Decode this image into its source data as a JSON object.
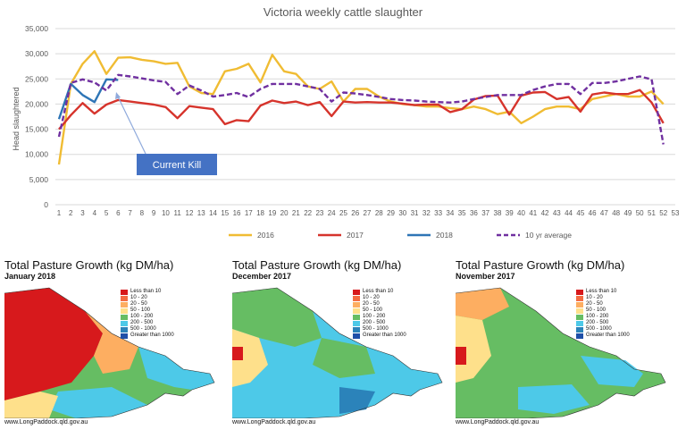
{
  "chart_data": {
    "type": "line",
    "title": "Victoria weekly cattle slaughter",
    "ylabel": "Head slaughtered",
    "xlabel": "",
    "ylim": [
      0,
      35000
    ],
    "yticks": [
      0,
      5000,
      10000,
      15000,
      20000,
      25000,
      30000,
      35000
    ],
    "ytick_labels": [
      "0",
      "5,000",
      "10,000",
      "15,000",
      "20,000",
      "25,000",
      "30,000",
      "35,000"
    ],
    "x": [
      1,
      2,
      3,
      4,
      5,
      6,
      7,
      8,
      9,
      10,
      11,
      12,
      13,
      14,
      15,
      16,
      17,
      18,
      19,
      20,
      21,
      22,
      23,
      24,
      25,
      26,
      27,
      28,
      29,
      30,
      31,
      32,
      33,
      34,
      35,
      36,
      37,
      38,
      39,
      40,
      41,
      42,
      43,
      44,
      45,
      46,
      47,
      48,
      49,
      50,
      51,
      52,
      53
    ],
    "grid": "horizontal",
    "legend_position": "bottom",
    "annotation": {
      "text": "Current Kill",
      "x": 6,
      "y": 22500
    },
    "series": [
      {
        "name": "2016",
        "color": "#f0bc33",
        "dash": false,
        "values": [
          8000,
          24000,
          28000,
          30500,
          26000,
          29200,
          29300,
          28800,
          28500,
          28000,
          28200,
          23500,
          22200,
          22000,
          26500,
          27000,
          28000,
          24300,
          29800,
          26500,
          26000,
          23500,
          23000,
          24500,
          20500,
          23000,
          23000,
          21500,
          20500,
          20000,
          19800,
          19500,
          19500,
          19200,
          19000,
          19500,
          19000,
          18000,
          18500,
          16200,
          17500,
          19000,
          19500,
          19500,
          19000,
          21000,
          21500,
          22000,
          21500,
          21500,
          22500,
          20000,
          null
        ]
      },
      {
        "name": "2017",
        "color": "#d6342c",
        "dash": false,
        "values": [
          15000,
          17800,
          20200,
          18100,
          19900,
          20800,
          20500,
          20200,
          19900,
          19400,
          17200,
          19600,
          19300,
          19000,
          16000,
          16800,
          16600,
          19700,
          20700,
          20200,
          20500,
          19800,
          20400,
          17600,
          20500,
          20300,
          20400,
          20300,
          20300,
          20100,
          19800,
          19900,
          19900,
          18400,
          19000,
          20900,
          21600,
          21700,
          17900,
          21700,
          22300,
          22400,
          21000,
          21400,
          18500,
          21900,
          22300,
          22000,
          22000,
          22800,
          20300,
          16200,
          null
        ]
      },
      {
        "name": "2018",
        "color": "#2e75b6",
        "dash": false,
        "values": [
          17000,
          24000,
          21800,
          20400,
          24900,
          24800,
          null,
          null,
          null,
          null,
          null,
          null,
          null,
          null,
          null,
          null,
          null,
          null,
          null,
          null,
          null,
          null,
          null,
          null,
          null,
          null,
          null,
          null,
          null,
          null,
          null,
          null,
          null,
          null,
          null,
          null,
          null,
          null,
          null,
          null,
          null,
          null,
          null,
          null,
          null,
          null,
          null,
          null,
          null,
          null,
          null,
          null,
          null
        ]
      },
      {
        "name": "10 yr average",
        "color": "#7030a0",
        "dash": true,
        "values": [
          13500,
          24200,
          24900,
          24300,
          22700,
          25800,
          25500,
          25100,
          24700,
          24400,
          22000,
          23700,
          22700,
          21500,
          21800,
          22200,
          21400,
          23000,
          24000,
          24000,
          24000,
          23500,
          23000,
          20500,
          22300,
          22100,
          21800,
          21400,
          21000,
          20800,
          20700,
          20500,
          20400,
          20300,
          20500,
          21000,
          21400,
          21800,
          21800,
          21800,
          22800,
          23500,
          24000,
          24000,
          22000,
          24200,
          24200,
          24500,
          25000,
          25500,
          24900,
          12000,
          null
        ]
      }
    ]
  },
  "maps": [
    {
      "title": "Total Pasture Growth (kg DM/ha)",
      "subtitle": "January 2018",
      "source": "www.LongPaddock.qld.gov.au"
    },
    {
      "title": "Total Pasture Growth (kg DM/ha)",
      "subtitle": "December 2017",
      "source": "www.LongPaddock.qld.gov.au"
    },
    {
      "title": "Total Pasture Growth (kg DM/ha)",
      "subtitle": "November 2017",
      "source": "www.LongPaddock.qld.gov.au"
    }
  ],
  "map_legend": [
    {
      "label": "Less than 10",
      "color": "#d7191c"
    },
    {
      "label": "10 - 20",
      "color": "#f46d43"
    },
    {
      "label": "20 - 50",
      "color": "#fdae61"
    },
    {
      "label": "50 - 100",
      "color": "#fee08b"
    },
    {
      "label": "100 - 200",
      "color": "#66bd63"
    },
    {
      "label": "200 - 500",
      "color": "#4dc9e8"
    },
    {
      "label": "500 - 1000",
      "color": "#2b83ba"
    },
    {
      "label": "Greater than 1000",
      "color": "#1f4fa8"
    }
  ]
}
